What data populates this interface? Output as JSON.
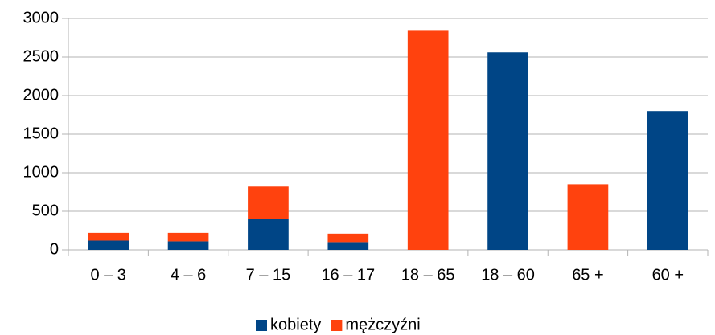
{
  "chart_data": {
    "type": "stacked_bar",
    "categories": [
      "0 – 3",
      "4 – 6",
      "7 – 15",
      "16 – 17",
      "18 – 65",
      "18 – 60",
      "65 +",
      "60 +"
    ],
    "series": [
      {
        "name": "kobiety",
        "color": "#004586",
        "values": [
          120,
          110,
          400,
          100,
          0,
          2560,
          0,
          1800
        ]
      },
      {
        "name": "mężczyźni",
        "color": "#ff420e",
        "values": [
          100,
          110,
          420,
          110,
          2850,
          0,
          850,
          0
        ]
      }
    ],
    "ylim": [
      0,
      3000
    ],
    "yticks": [
      0,
      500,
      1000,
      1500,
      2000,
      2500,
      3000
    ],
    "grid": true,
    "legend": "bottom"
  }
}
